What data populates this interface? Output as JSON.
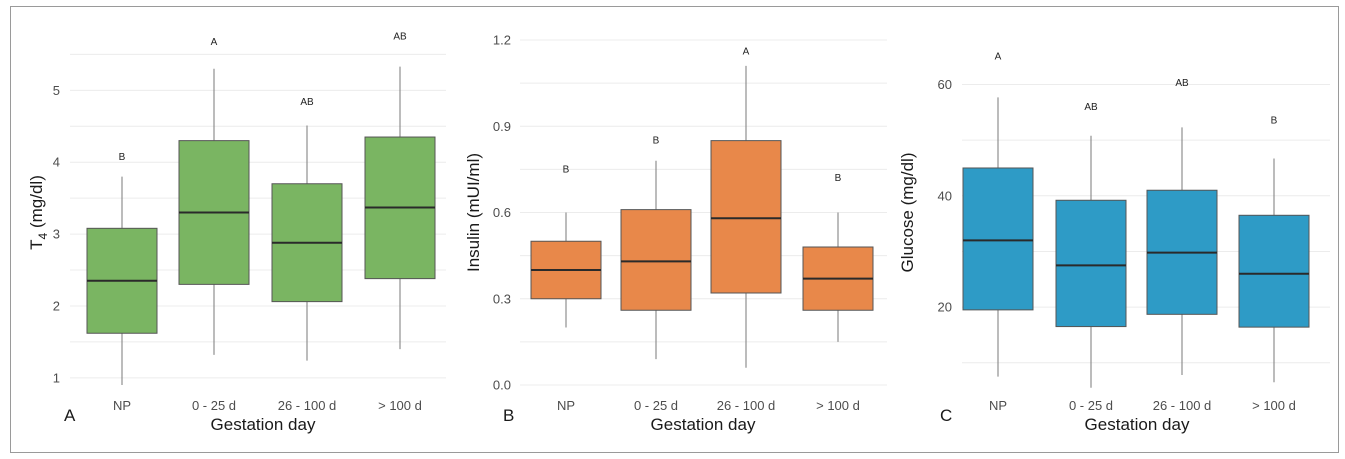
{
  "chart_data": [
    {
      "type": "box",
      "panel_label": "A",
      "xlabel": "Gestation day",
      "ylabel_main": "T",
      "ylabel_sub": "4",
      "ylabel_rest": " (mg/dl)",
      "ylim": [
        0.9,
        5.7
      ],
      "yticks": [
        1,
        2,
        3,
        4,
        5
      ],
      "ytick_labels": [
        "1",
        "2",
        "3",
        "4",
        "5"
      ],
      "grid": true,
      "color": "#7ab562",
      "categories": [
        "NP",
        "0 - 25 d",
        "26 - 100 d",
        "> 100 d"
      ],
      "boxes": [
        {
          "min": 0.9,
          "q1": 1.62,
          "median": 2.35,
          "q3": 3.08,
          "max": 3.8,
          "letter": "B",
          "letter_y": 4.07
        },
        {
          "min": 1.32,
          "q1": 2.3,
          "median": 3.3,
          "q3": 4.3,
          "max": 5.3,
          "letter": "A",
          "letter_y": 5.67
        },
        {
          "min": 1.24,
          "q1": 2.06,
          "median": 2.88,
          "q3": 3.7,
          "max": 4.51,
          "letter": "AB",
          "letter_y": 4.84
        },
        {
          "min": 1.4,
          "q1": 2.38,
          "median": 3.37,
          "q3": 4.35,
          "max": 5.33,
          "letter": "AB",
          "letter_y": 5.75
        }
      ]
    },
    {
      "type": "box",
      "panel_label": "B",
      "xlabel": "Gestation day",
      "ylabel_main": "Insulin (mUI/ml)",
      "ylabel_sub": "",
      "ylabel_rest": "",
      "ylim": [
        0.0,
        1.2
      ],
      "yticks": [
        0.0,
        0.3,
        0.6,
        0.9,
        1.2
      ],
      "ytick_labels": [
        "0.0",
        "0.3",
        "0.6",
        "0.9",
        "1.2"
      ],
      "grid": true,
      "color": "#e8884a",
      "categories": [
        "NP",
        "0 - 25 d",
        "26 - 100 d",
        "> 100 d"
      ],
      "boxes": [
        {
          "min": 0.2,
          "q1": 0.3,
          "median": 0.4,
          "q3": 0.5,
          "max": 0.6,
          "letter": "B",
          "letter_y": 0.75
        },
        {
          "min": 0.09,
          "q1": 0.26,
          "median": 0.43,
          "q3": 0.61,
          "max": 0.78,
          "letter": "B",
          "letter_y": 0.85
        },
        {
          "min": 0.06,
          "q1": 0.32,
          "median": 0.58,
          "q3": 0.85,
          "max": 1.11,
          "letter": "A",
          "letter_y": 1.16
        },
        {
          "min": 0.15,
          "q1": 0.26,
          "median": 0.37,
          "q3": 0.48,
          "max": 0.6,
          "letter": "B",
          "letter_y": 0.72
        }
      ]
    },
    {
      "type": "box",
      "panel_label": "C",
      "xlabel": "Gestation day",
      "ylabel_main": "Glucose (mg/dl)",
      "ylabel_sub": "",
      "ylabel_rest": "",
      "ylim": [
        6,
        68
      ],
      "yticks": [
        20,
        40,
        60
      ],
      "ytick_labels": [
        "20",
        "40",
        "60"
      ],
      "grid": true,
      "color": "#2e9bc6",
      "categories": [
        "NP",
        "0 - 25 d",
        "26 - 100 d",
        "> 100 d"
      ],
      "boxes": [
        {
          "min": 7.5,
          "q1": 19.5,
          "median": 32,
          "q3": 45,
          "max": 57.7,
          "letter": "A",
          "letter_y": 65
        },
        {
          "min": 5.5,
          "q1": 16.5,
          "median": 27.5,
          "q3": 39.2,
          "max": 50.8,
          "letter": "AB",
          "letter_y": 56
        },
        {
          "min": 7.8,
          "q1": 18.7,
          "median": 29.8,
          "q3": 41,
          "max": 52.3,
          "letter": "AB",
          "letter_y": 60.3
        },
        {
          "min": 6.5,
          "q1": 16.4,
          "median": 26,
          "q3": 36.5,
          "max": 46.7,
          "letter": "B",
          "letter_y": 53.5
        }
      ]
    }
  ]
}
